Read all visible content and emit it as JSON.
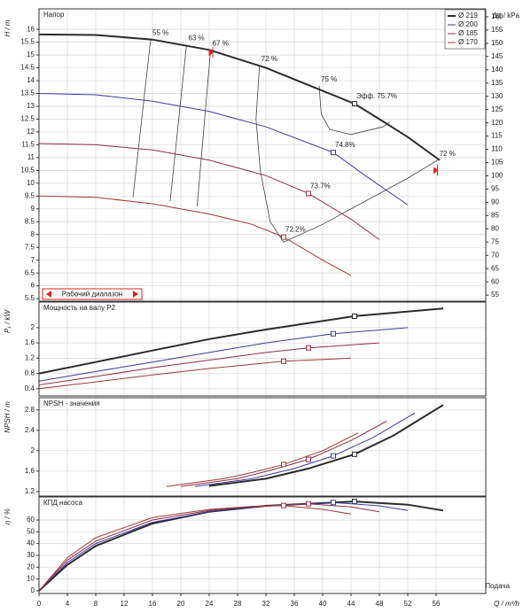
{
  "chart_data": [
    {
      "type": "line",
      "title": "Напор",
      "ylabel": "H / m",
      "y2label": "Δp / kPa",
      "xlim": [
        0,
        63
      ],
      "ylim": [
        5.4,
        16.8
      ],
      "yticks": [
        5.5,
        6,
        6.5,
        7,
        7.5,
        8,
        8.5,
        9,
        9.5,
        10,
        10.5,
        11,
        11.5,
        12,
        12.5,
        13,
        13.5,
        14,
        14.5,
        15,
        15.5,
        16
      ],
      "y2lim": [
        52.7,
        163
      ],
      "y2ticks": [
        55,
        60,
        65,
        70,
        75,
        80,
        85,
        90,
        95,
        100,
        105,
        110,
        115,
        120,
        125,
        130,
        135,
        140,
        145,
        150,
        155,
        160
      ],
      "grid": true,
      "legend": "top-right",
      "range_label": "Рабочий диапазон",
      "range_markers": {
        "x": [
          24.5,
          56.2
        ],
        "y": [
          15.1,
          10.5
        ],
        "color": "#e02020"
      },
      "series": [
        {
          "name": "Ø 219",
          "color": "#2b2b2b",
          "width": 2,
          "x": [
            0,
            8,
            16,
            24,
            32,
            40,
            44.5,
            48,
            52,
            56.5
          ],
          "values": [
            15.8,
            15.78,
            15.6,
            15.2,
            14.5,
            13.6,
            13.1,
            12.5,
            11.8,
            10.9
          ],
          "marker": {
            "x": 44.5,
            "y": 13.1
          },
          "marker_label": "Эфф. 75.7%"
        },
        {
          "name": "Ø 200",
          "color": "#3d3d99",
          "width": 1,
          "x": [
            0,
            8,
            16,
            24,
            32,
            41.5,
            46,
            52
          ],
          "values": [
            13.5,
            13.45,
            13.2,
            12.8,
            12.2,
            11.2,
            10.3,
            9.15
          ],
          "marker": {
            "x": 41.5,
            "y": 11.2
          },
          "marker_label": "74.8%"
        },
        {
          "name": "Ø 185",
          "color": "#8c2d4a",
          "width": 1,
          "x": [
            0,
            8,
            16,
            24,
            32,
            38,
            44,
            48
          ],
          "values": [
            11.55,
            11.5,
            11.3,
            10.9,
            10.3,
            9.6,
            8.6,
            7.8
          ],
          "marker": {
            "x": 38,
            "y": 9.6
          },
          "marker_label": "73.7%"
        },
        {
          "name": "Ø 170",
          "color": "#9e3a3a",
          "width": 1,
          "x": [
            0,
            8,
            16,
            24,
            30,
            34.5,
            40,
            44
          ],
          "values": [
            9.5,
            9.45,
            9.2,
            8.8,
            8.4,
            7.9,
            7.0,
            6.4
          ],
          "marker": {
            "x": 34.5,
            "y": 7.9
          },
          "marker_label": "72.2%"
        }
      ],
      "contours": [
        {
          "labels": [
            "55 %"
          ],
          "x": [
            15.75,
            13.25
          ],
          "y": [
            15.62,
            9.45
          ]
        },
        {
          "labels": [
            "63 %"
          ],
          "x": [
            20.8,
            18.5
          ],
          "y": [
            15.4,
            9.3
          ]
        },
        {
          "labels": [
            "67 %"
          ],
          "x": [
            24.2,
            22.3
          ],
          "y": [
            15.2,
            9.1
          ]
        },
        {
          "labels": [
            "72 %",
            "72 %"
          ],
          "x": [
            31.1,
            30.6,
            31.2,
            32.6,
            34.5,
            40,
            46,
            52,
            56.2
          ],
          "y": [
            14.6,
            12.5,
            10.5,
            8.5,
            7.7,
            8.4,
            9.3,
            10.2,
            10.9
          ]
        },
        {
          "labels": [
            "75 %"
          ],
          "x": [
            39.5,
            39.8,
            41,
            44,
            48.5,
            49.5
          ],
          "y": [
            13.8,
            12.7,
            12.1,
            11.9,
            12.2,
            12.4
          ]
        }
      ]
    },
    {
      "type": "line",
      "title": "Мощность на валу P2",
      "ylabel": "P₁ / kW",
      "xlim": [
        0,
        63
      ],
      "ylim": [
        0.21,
        2.67
      ],
      "yticks": [
        0.4,
        0.8,
        1.2,
        1.6,
        2
      ],
      "grid": true,
      "series": [
        {
          "color": "#2b2b2b",
          "width": 2,
          "x": [
            0,
            8,
            16,
            24,
            32,
            44.5,
            57
          ],
          "values": [
            0.8,
            1.1,
            1.4,
            1.7,
            1.95,
            2.3,
            2.5
          ],
          "marker": {
            "x": 44.5,
            "y": 2.3
          }
        },
        {
          "color": "#3d3d99",
          "width": 1,
          "x": [
            0,
            8,
            16,
            24,
            32,
            41.5,
            52
          ],
          "values": [
            0.6,
            0.85,
            1.1,
            1.35,
            1.6,
            1.84,
            2.0
          ],
          "marker": {
            "x": 41.5,
            "y": 1.84
          }
        },
        {
          "color": "#8c2d4a",
          "width": 1,
          "x": [
            0,
            8,
            16,
            24,
            32,
            38,
            48
          ],
          "values": [
            0.5,
            0.72,
            0.95,
            1.15,
            1.35,
            1.47,
            1.6
          ],
          "marker": {
            "x": 38,
            "y": 1.47
          }
        },
        {
          "color": "#9e3a3a",
          "width": 1,
          "x": [
            0,
            8,
            16,
            24,
            34.5,
            44
          ],
          "values": [
            0.4,
            0.58,
            0.76,
            0.93,
            1.12,
            1.2
          ],
          "marker": {
            "x": 34.5,
            "y": 1.12
          }
        }
      ]
    },
    {
      "type": "line",
      "title": "NPSH - значения",
      "ylabel": "NPSH / m",
      "xlim": [
        0,
        63
      ],
      "ylim": [
        1.11,
        3.04
      ],
      "yticks": [
        1.2,
        1.6,
        2,
        2.4,
        2.8
      ],
      "grid": true,
      "series": [
        {
          "color": "#2b2b2b",
          "width": 2,
          "x": [
            24,
            32,
            38,
            44.5,
            50,
            57
          ],
          "values": [
            1.31,
            1.45,
            1.65,
            1.93,
            2.3,
            2.9
          ],
          "marker": {
            "x": 44.5,
            "y": 1.93
          }
        },
        {
          "color": "#3d3d99",
          "width": 1,
          "x": [
            22,
            30,
            36,
            41.5,
            47,
            53
          ],
          "values": [
            1.3,
            1.45,
            1.65,
            1.9,
            2.25,
            2.74
          ],
          "marker": {
            "x": 41.5,
            "y": 1.9
          }
        },
        {
          "color": "#8c2d4a",
          "width": 1,
          "x": [
            20,
            28,
            33,
            38,
            44,
            49
          ],
          "values": [
            1.3,
            1.45,
            1.63,
            1.83,
            2.2,
            2.58
          ],
          "marker": {
            "x": 38,
            "y": 1.83
          }
        },
        {
          "color": "#9e3a3a",
          "width": 1,
          "x": [
            18,
            26,
            30,
            34.5,
            40,
            45
          ],
          "values": [
            1.3,
            1.45,
            1.57,
            1.73,
            2.0,
            2.35
          ],
          "marker": {
            "x": 34.5,
            "y": 1.73
          }
        }
      ]
    },
    {
      "type": "line",
      "title": "КПД насоса",
      "ylabel": "η / %",
      "xlabel": "Q / m³/h",
      "xnote": "Подача",
      "xlim": [
        0,
        63
      ],
      "ylim": [
        -2.3,
        79.5
      ],
      "yticks": [
        0,
        10,
        20,
        30,
        40,
        50,
        60
      ],
      "grid": true,
      "xticks": [
        0,
        4,
        8,
        12,
        16,
        20,
        24,
        28,
        32,
        36,
        40,
        44,
        48,
        52,
        56
      ],
      "series": [
        {
          "color": "#2b2b2b",
          "width": 2,
          "x": [
            0,
            4,
            8,
            16,
            24,
            32,
            44.5,
            52,
            57
          ],
          "values": [
            0,
            22,
            38,
            57,
            67,
            72,
            75.7,
            73,
            68
          ],
          "marker": {
            "x": 44.5,
            "y": 75.7
          }
        },
        {
          "color": "#3d3d99",
          "width": 1,
          "x": [
            0,
            4,
            8,
            16,
            24,
            32,
            41.5,
            48,
            52
          ],
          "values": [
            0,
            24,
            40,
            58,
            67,
            72,
            74.8,
            72,
            68
          ],
          "marker": {
            "x": 41.5,
            "y": 74.8
          }
        },
        {
          "color": "#8c2d4a",
          "width": 1,
          "x": [
            0,
            4,
            8,
            16,
            24,
            30,
            38,
            44,
            48
          ],
          "values": [
            0,
            26,
            42,
            60,
            68,
            71.5,
            73.7,
            71,
            67
          ],
          "marker": {
            "x": 38,
            "y": 73.7
          }
        },
        {
          "color": "#9e3a3a",
          "width": 1,
          "x": [
            0,
            4,
            8,
            16,
            24,
            30,
            34.5,
            40,
            44
          ],
          "values": [
            0,
            28,
            45,
            62,
            69,
            71.5,
            72.2,
            69,
            65
          ],
          "marker": {
            "x": 34.5,
            "y": 72.2
          }
        }
      ]
    }
  ]
}
